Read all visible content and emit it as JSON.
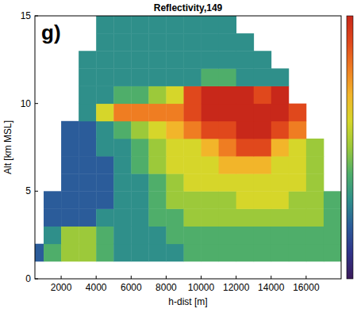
{
  "chart_data": {
    "type": "heatmap",
    "title": "Reflectivity,149",
    "panel_label": "g)",
    "x_label": "h-dist [m]",
    "y_label": "Alt [km MSL]",
    "xlim": [
      500,
      18000
    ],
    "ylim": [
      0,
      15
    ],
    "xticks": [
      2000,
      4000,
      6000,
      8000,
      10000,
      12000,
      14000,
      16000
    ],
    "yticks": [
      0,
      5,
      10,
      15
    ],
    "x_edges": [
      0,
      1000,
      2000,
      3000,
      4000,
      5000,
      6000,
      7000,
      8000,
      9000,
      10000,
      11000,
      12000,
      13000,
      14000,
      15000,
      16000,
      17000,
      18000
    ],
    "y_edges": [
      1,
      2,
      3,
      4,
      5,
      6,
      7,
      8,
      9,
      10,
      11,
      12,
      13,
      14,
      15
    ],
    "color_range": [
      0,
      10
    ],
    "cells": [
      [
        2,
        4,
        5,
        5,
        4,
        3,
        3,
        3,
        3,
        4,
        4,
        4,
        4,
        4,
        4,
        4,
        4,
        4
      ],
      [
        null,
        3,
        5,
        5,
        4,
        3,
        3,
        3,
        4,
        4,
        4,
        4,
        4,
        4,
        4,
        4,
        4,
        4
      ],
      [
        null,
        2,
        2,
        2,
        3,
        3,
        3,
        4,
        4,
        5,
        5,
        5,
        5,
        5,
        5,
        5,
        5,
        4
      ],
      [
        null,
        2,
        2,
        2,
        2,
        3,
        3,
        4,
        5,
        5,
        5,
        5,
        6,
        6,
        6,
        5,
        5,
        4
      ],
      [
        null,
        null,
        2,
        2,
        2,
        3,
        3,
        4,
        5,
        6,
        6,
        6,
        6,
        6,
        6,
        6,
        5,
        null
      ],
      [
        null,
        null,
        2,
        2,
        2,
        3,
        4,
        5,
        6,
        6,
        6,
        7,
        7,
        7,
        6,
        6,
        5,
        null
      ],
      [
        null,
        null,
        2,
        2,
        3,
        3,
        4,
        5,
        6,
        6,
        7,
        8,
        9,
        9,
        7,
        6,
        5,
        null
      ],
      [
        null,
        null,
        2,
        2,
        3,
        4,
        5,
        6,
        7,
        8,
        9,
        9,
        10,
        10,
        9,
        8,
        null,
        null
      ],
      [
        null,
        null,
        null,
        3,
        6,
        8,
        8,
        8,
        8,
        9,
        10,
        10,
        10,
        10,
        10,
        9,
        null,
        null
      ],
      [
        null,
        null,
        null,
        3,
        3,
        4,
        4,
        5,
        6,
        9,
        10,
        10,
        10,
        9,
        10,
        null,
        null,
        null
      ],
      [
        null,
        null,
        null,
        3,
        3,
        3,
        3,
        3,
        3,
        3,
        4,
        4,
        3,
        3,
        3,
        null,
        null,
        null
      ],
      [
        null,
        null,
        null,
        3,
        3,
        3,
        3,
        3,
        3,
        3,
        3,
        3,
        3,
        3,
        null,
        null,
        null,
        null
      ],
      [
        null,
        null,
        null,
        null,
        3,
        3,
        3,
        3,
        3,
        3,
        3,
        3,
        3,
        null,
        null,
        null,
        null,
        null
      ],
      [
        null,
        null,
        null,
        null,
        3,
        3,
        3,
        3,
        3,
        3,
        3,
        3,
        null,
        null,
        null,
        null,
        null,
        null
      ]
    ]
  }
}
